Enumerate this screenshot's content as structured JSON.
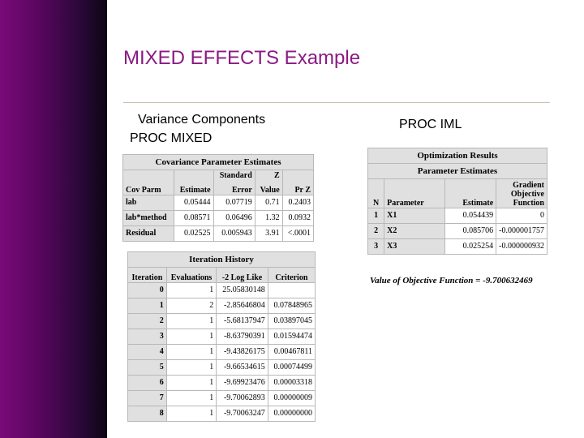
{
  "slide": {
    "title": "MIXED EFFECTS Example",
    "left_heading_1": "Variance Components",
    "left_heading_2": "PROC MIXED",
    "right_heading": "PROC IML"
  },
  "cov_table": {
    "caption": "Covariance Parameter Estimates",
    "header_top": [
      "",
      "",
      "Standard",
      "Z",
      ""
    ],
    "header": [
      "Cov Parm",
      "Estimate",
      "Error",
      "Value",
      "Pr Z"
    ],
    "rows": [
      [
        "lab",
        "0.05444",
        "0.07719",
        "0.71",
        "0.2403"
      ],
      [
        "lab*method",
        "0.08571",
        "0.06496",
        "1.32",
        "0.0932"
      ],
      [
        "Residual",
        "0.02525",
        "0.005943",
        "3.91",
        "<.0001"
      ]
    ]
  },
  "iter_table": {
    "caption": "Iteration History",
    "header": [
      "Iteration",
      "Evaluations",
      "-2 Log Like",
      "Criterion"
    ],
    "rows": [
      [
        "0",
        "1",
        "25.05830148",
        ""
      ],
      [
        "1",
        "2",
        "-2.85646804",
        "0.07848965"
      ],
      [
        "2",
        "1",
        "-5.68137947",
        "0.03897045"
      ],
      [
        "3",
        "1",
        "-8.63790391",
        "0.01594474"
      ],
      [
        "4",
        "1",
        "-9.43826175",
        "0.00467811"
      ],
      [
        "5",
        "1",
        "-9.66534615",
        "0.00074499"
      ],
      [
        "6",
        "1",
        "-9.69923476",
        "0.00003318"
      ],
      [
        "7",
        "1",
        "-9.70062893",
        "0.00000009"
      ],
      [
        "8",
        "1",
        "-9.70063247",
        "0.00000000"
      ]
    ]
  },
  "iml_table": {
    "caption_1": "Optimization Results",
    "caption_2": "Parameter Estimates",
    "header": [
      "N",
      "Parameter",
      "Estimate",
      "Gradient Objective Function"
    ],
    "rows": [
      [
        "1",
        "X1",
        "0.054439",
        "0"
      ],
      [
        "2",
        "X2",
        "0.085706",
        "-0.000001757"
      ],
      [
        "3",
        "X3",
        "0.025254",
        "-0.000000932"
      ]
    ],
    "objective": "Value of Objective Function = -9.700632469"
  }
}
